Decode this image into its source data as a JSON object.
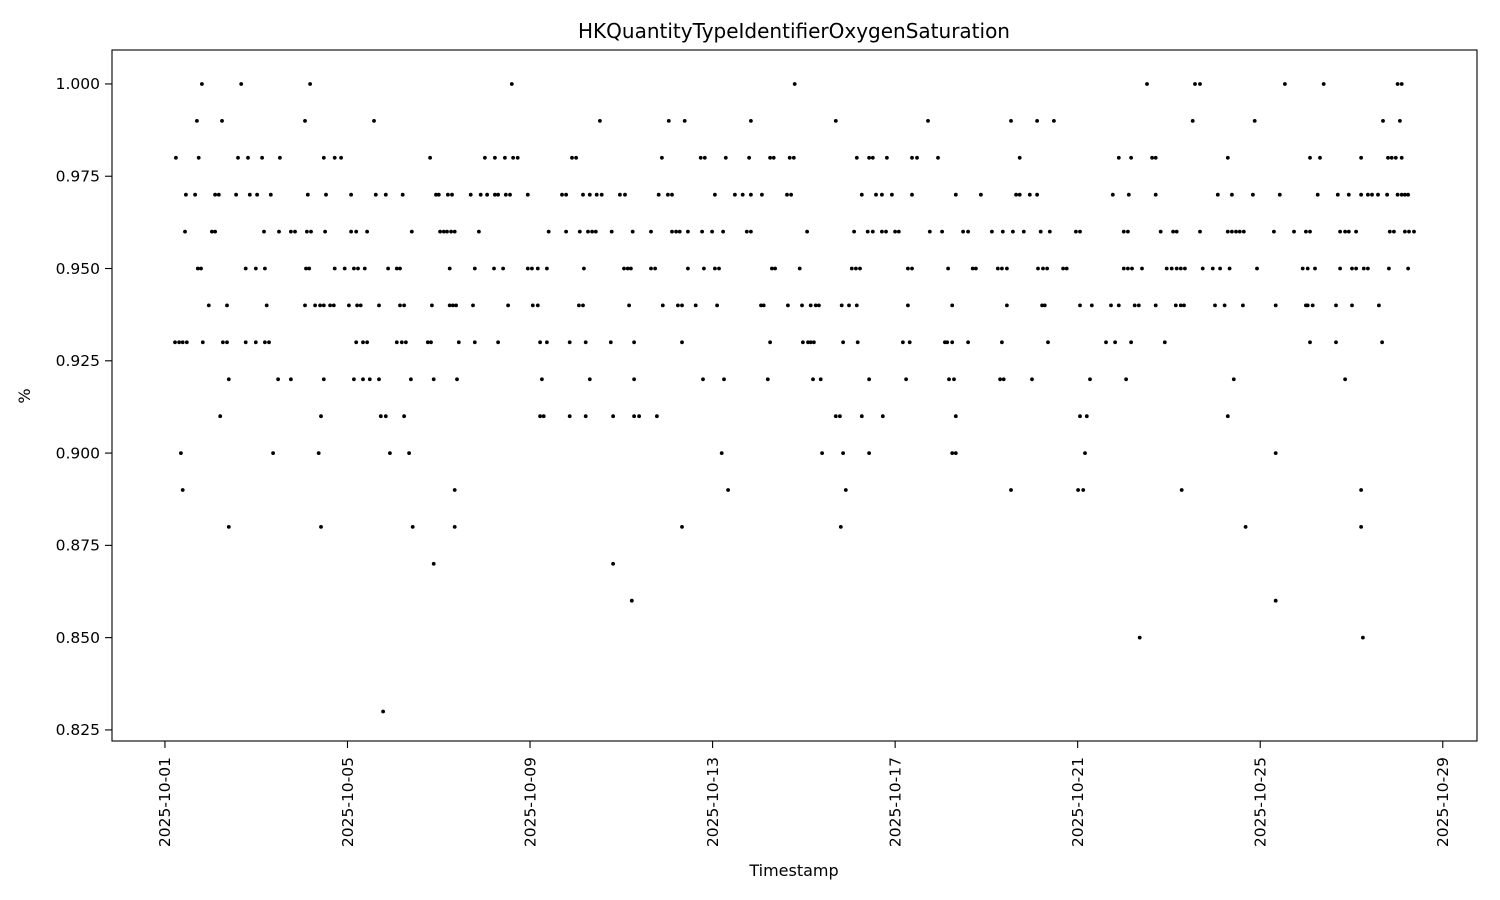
{
  "figure": {
    "background": "#ffffff",
    "dot_color": "#000000",
    "spine_color": "#000000"
  },
  "chart_data": {
    "type": "scatter",
    "title": "HKQuantityTypeIdentifierOxygenSaturation",
    "xlabel": "Timestamp",
    "ylabel": "%",
    "grid": false,
    "legend": "none",
    "marker": "point",
    "x_unit": "days since 2025-10-01 00:00",
    "xlim_days": [
      -1.16,
      28.75
    ],
    "ylim": [
      0.822,
      1.0092
    ],
    "x_ticks": {
      "days": [
        0,
        4,
        8,
        12,
        16,
        20,
        24,
        28
      ],
      "labels": [
        "2025-10-01",
        "2025-10-05",
        "2025-10-09",
        "2025-10-13",
        "2025-10-17",
        "2025-10-21",
        "2025-10-25",
        "2025-10-29"
      ]
    },
    "y_ticks": {
      "values": [
        1.0,
        0.975,
        0.95,
        0.925,
        0.9,
        0.875,
        0.85,
        0.825
      ],
      "labels": [
        "1.000",
        "0.975",
        "0.950",
        "0.925",
        "0.900",
        "0.875",
        "0.850",
        "0.825"
      ]
    },
    "rows": [
      {
        "value": 1.0,
        "days": [
          0.81,
          1.67,
          3.18,
          7.6,
          13.8,
          21.52,
          22.57,
          22.68,
          24.54,
          25.39,
          27.01,
          27.1
        ]
      },
      {
        "value": 0.99,
        "days": [
          0.7,
          1.25,
          3.07,
          4.58,
          9.53,
          11.04,
          11.39,
          12.84,
          14.7,
          16.72,
          18.54,
          19.11,
          19.48,
          22.52,
          23.88,
          26.69,
          27.06
        ]
      },
      {
        "value": 0.98,
        "days": [
          0.24,
          0.74,
          1.6,
          1.82,
          2.13,
          2.52,
          3.48,
          3.72,
          3.86,
          5.81,
          7.01,
          7.23,
          7.45,
          7.63,
          7.73,
          8.92,
          9.01,
          10.89,
          11.74,
          11.83,
          12.29,
          12.8,
          13.26,
          13.34,
          13.69,
          13.78,
          15.16,
          15.43,
          15.51,
          15.82,
          16.37,
          16.48,
          16.94,
          18.73,
          20.9,
          21.17,
          21.63,
          21.71,
          23.29,
          25.09,
          25.31,
          26.21,
          26.8,
          26.88,
          26.97,
          27.1
        ]
      },
      {
        "value": 0.97,
        "days": [
          0.46,
          0.66,
          1.1,
          1.18,
          1.56,
          1.86,
          2.02,
          2.32,
          3.13,
          3.53,
          4.08,
          4.62,
          4.84,
          5.21,
          5.94,
          6.0,
          6.2,
          6.29,
          6.7,
          6.92,
          7.06,
          7.23,
          7.3,
          7.47,
          7.56,
          7.95,
          8.7,
          8.79,
          9.16,
          9.31,
          9.46,
          9.57,
          9.97,
          10.08,
          10.82,
          11.02,
          11.11,
          12.05,
          12.49,
          12.66,
          12.84,
          13.08,
          13.63,
          13.72,
          15.27,
          15.58,
          15.71,
          15.93,
          16.37,
          17.33,
          17.88,
          18.65,
          18.73,
          18.95,
          19.11,
          20.77,
          21.12,
          21.71,
          23.07,
          23.38,
          23.84,
          24.43,
          25.26,
          25.7,
          25.94,
          26.21,
          26.36,
          26.45,
          26.58,
          26.78,
          27.01,
          27.1,
          27.17,
          27.24
        ]
      },
      {
        "value": 0.96,
        "days": [
          0.44,
          1.03,
          1.1,
          2.17,
          2.5,
          2.76,
          2.85,
          3.11,
          3.2,
          3.51,
          4.08,
          4.19,
          4.43,
          5.41,
          6.03,
          6.11,
          6.18,
          6.27,
          6.35,
          6.88,
          8.41,
          8.79,
          9.09,
          9.27,
          9.36,
          9.44,
          9.79,
          10.25,
          10.65,
          11.11,
          11.2,
          11.28,
          11.46,
          11.77,
          11.99,
          12.23,
          12.75,
          12.84,
          14.07,
          15.1,
          15.4,
          15.51,
          15.71,
          15.8,
          16.0,
          16.08,
          16.76,
          17.03,
          17.49,
          17.6,
          18.12,
          18.36,
          18.58,
          18.82,
          19.19,
          19.39,
          19.96,
          20.05,
          21.01,
          21.1,
          21.82,
          22.09,
          22.17,
          22.68,
          23.29,
          23.38,
          23.47,
          23.55,
          23.64,
          24.3,
          24.74,
          25.0,
          25.09,
          25.75,
          25.86,
          25.94,
          26.1,
          26.84,
          26.93,
          27.17,
          27.26,
          27.37
        ]
      },
      {
        "value": 0.95,
        "days": [
          0.72,
          0.79,
          1.77,
          1.99,
          2.19,
          3.09,
          3.16,
          3.72,
          3.94,
          4.14,
          4.23,
          4.38,
          4.89,
          5.08,
          5.15,
          6.24,
          6.79,
          7.21,
          7.41,
          7.95,
          8.04,
          8.17,
          8.37,
          9.18,
          10.06,
          10.14,
          10.21,
          10.65,
          10.74,
          11.46,
          11.81,
          12.05,
          12.14,
          13.3,
          13.37,
          13.91,
          15.05,
          15.14,
          15.23,
          16.28,
          16.37,
          17.16,
          17.7,
          17.77,
          18.25,
          18.34,
          18.45,
          19.13,
          19.24,
          19.33,
          19.68,
          19.76,
          21.01,
          21.1,
          21.19,
          21.41,
          21.95,
          22.06,
          22.17,
          22.26,
          22.35,
          22.74,
          22.96,
          23.12,
          23.33,
          23.93,
          24.93,
          25.04,
          25.2,
          25.75,
          26.01,
          26.1,
          26.27,
          26.36,
          26.82,
          27.24
        ]
      },
      {
        "value": 0.94,
        "days": [
          0.96,
          1.36,
          2.23,
          3.07,
          3.29,
          3.4,
          3.48,
          3.62,
          3.7,
          4.03,
          4.21,
          4.29,
          4.69,
          5.15,
          5.24,
          5.85,
          6.24,
          6.31,
          6.38,
          6.75,
          7.52,
          8.06,
          8.17,
          9.07,
          9.16,
          10.17,
          10.91,
          11.24,
          11.33,
          11.63,
          12.1,
          13.06,
          13.12,
          13.65,
          13.96,
          14.15,
          14.26,
          14.33,
          14.83,
          14.99,
          15.16,
          16.28,
          17.25,
          18.45,
          19.22,
          19.28,
          20.05,
          20.31,
          20.73,
          20.9,
          21.25,
          21.34,
          21.71,
          22.15,
          22.26,
          22.33,
          23.01,
          23.22,
          23.62,
          24.34,
          25.0,
          25.04,
          25.15,
          25.66,
          26.01,
          26.6
        ]
      },
      {
        "value": 0.93,
        "days": [
          0.22,
          0.31,
          0.39,
          0.48,
          0.83,
          1.27,
          1.36,
          1.77,
          1.99,
          2.19,
          2.28,
          4.19,
          4.34,
          4.43,
          5.08,
          5.19,
          5.28,
          5.76,
          5.83,
          6.44,
          6.79,
          7.3,
          8.22,
          8.37,
          8.87,
          9.22,
          9.77,
          10.28,
          11.33,
          13.26,
          13.98,
          14.09,
          14.15,
          14.22,
          14.86,
          15.18,
          16.17,
          16.32,
          17.09,
          17.14,
          17.25,
          17.6,
          18.34,
          19.35,
          20.62,
          20.82,
          21.17,
          21.91,
          25.09,
          25.66,
          26.67
        ]
      },
      {
        "value": 0.92,
        "days": [
          1.4,
          2.48,
          2.76,
          3.48,
          4.14,
          4.34,
          4.49,
          4.69,
          5.39,
          5.89,
          6.4,
          8.26,
          9.31,
          10.28,
          11.79,
          12.25,
          13.21,
          14.2,
          14.37,
          15.43,
          16.24,
          17.18,
          17.29,
          18.3,
          18.38,
          19.0,
          20.27,
          21.06,
          23.42,
          25.86
        ]
      },
      {
        "value": 0.91,
        "days": [
          1.21,
          3.42,
          4.73,
          4.84,
          5.24,
          8.22,
          8.3,
          8.87,
          9.22,
          9.82,
          10.28,
          10.39,
          10.78,
          14.7,
          14.79,
          15.27,
          15.73,
          17.33,
          20.05,
          20.2,
          23.29
        ]
      },
      {
        "value": 0.9,
        "days": [
          0.35,
          2.37,
          3.37,
          4.93,
          5.35,
          12.2,
          14.4,
          14.86,
          15.43,
          17.25,
          17.33,
          20.16,
          24.34
        ]
      },
      {
        "value": 0.89,
        "days": [
          0.39,
          6.35,
          12.34,
          14.92,
          18.54,
          20.01,
          20.12,
          22.28,
          26.21
        ]
      },
      {
        "value": 0.88,
        "days": [
          1.4,
          3.42,
          5.43,
          6.35,
          11.33,
          14.81,
          23.68,
          26.21
        ]
      },
      {
        "value": 0.87,
        "days": [
          5.89,
          9.82
        ]
      },
      {
        "value": 0.86,
        "days": [
          10.23,
          24.34
        ]
      },
      {
        "value": 0.85,
        "days": [
          21.36,
          26.25
        ]
      },
      {
        "value": 0.83,
        "days": [
          4.78
        ]
      }
    ]
  }
}
